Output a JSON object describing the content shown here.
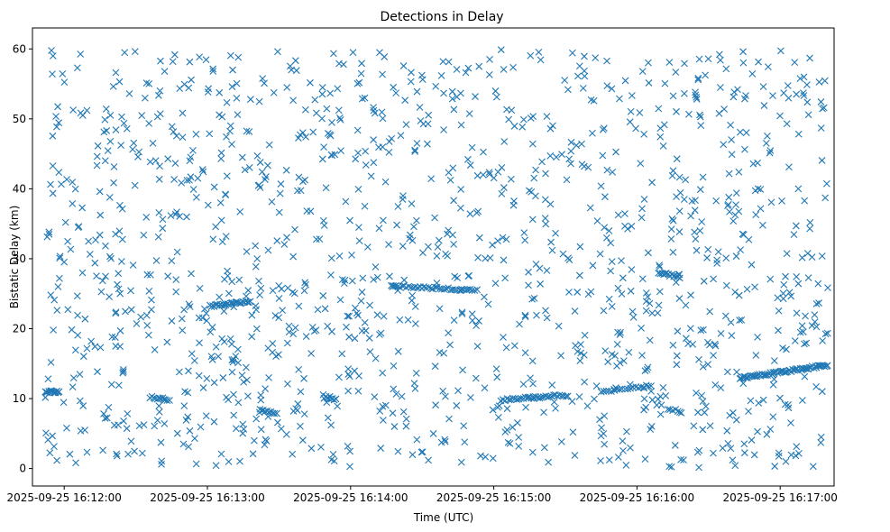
{
  "chart_data": {
    "type": "scatter",
    "title": "Detections in Delay",
    "xlabel": "Time (UTC)",
    "ylabel": "Bistatic Delay (km)",
    "x_unit": "seconds after 2025-09-25 16:11:00",
    "xlim": [
      46.7,
      382.6
    ],
    "ylim": [
      -2.5,
      63.0
    ],
    "x_ticks": [
      {
        "value": 60,
        "label": "2025-09-25 16:12:00"
      },
      {
        "value": 120,
        "label": "2025-09-25 16:13:00"
      },
      {
        "value": 180,
        "label": "2025-09-25 16:14:00"
      },
      {
        "value": 240,
        "label": "2025-09-25 16:15:00"
      },
      {
        "value": 300,
        "label": "2025-09-25 16:16:00"
      },
      {
        "value": 360,
        "label": "2025-09-25 16:17:00"
      }
    ],
    "y_ticks": [
      {
        "value": 0,
        "label": "0"
      },
      {
        "value": 10,
        "label": "10"
      },
      {
        "value": 20,
        "label": "20"
      },
      {
        "value": 30,
        "label": "30"
      },
      {
        "value": 40,
        "label": "40"
      },
      {
        "value": 50,
        "label": "50"
      },
      {
        "value": 60,
        "label": "60"
      }
    ],
    "grid": false,
    "legend": "none",
    "marker": "x",
    "color": "#1f77b4",
    "background_count": 1350,
    "tracks": [
      {
        "x0": 52,
        "x1": 58,
        "y0": 11.0,
        "y1": 11.0,
        "n": 14
      },
      {
        "x0": 96,
        "x1": 104,
        "y0": 10.2,
        "y1": 9.8,
        "n": 12
      },
      {
        "x0": 121,
        "x1": 138,
        "y0": 23.2,
        "y1": 23.9,
        "n": 28
      },
      {
        "x0": 142,
        "x1": 149,
        "y0": 8.3,
        "y1": 8.0,
        "n": 10
      },
      {
        "x0": 169,
        "x1": 174,
        "y0": 10.2,
        "y1": 9.9,
        "n": 8
      },
      {
        "x0": 197,
        "x1": 233,
        "y0": 26.1,
        "y1": 25.5,
        "n": 40
      },
      {
        "x0": 243,
        "x1": 271,
        "y0": 9.8,
        "y1": 10.5,
        "n": 34
      },
      {
        "x0": 285,
        "x1": 306,
        "y0": 10.9,
        "y1": 11.9,
        "n": 20
      },
      {
        "x0": 309,
        "x1": 318,
        "y0": 28.0,
        "y1": 27.4,
        "n": 14
      },
      {
        "x0": 343,
        "x1": 380,
        "y0": 12.9,
        "y1": 14.8,
        "n": 64
      },
      {
        "x0": 313,
        "x1": 318,
        "y0": 8.4,
        "y1": 8.2,
        "n": 6
      }
    ]
  }
}
